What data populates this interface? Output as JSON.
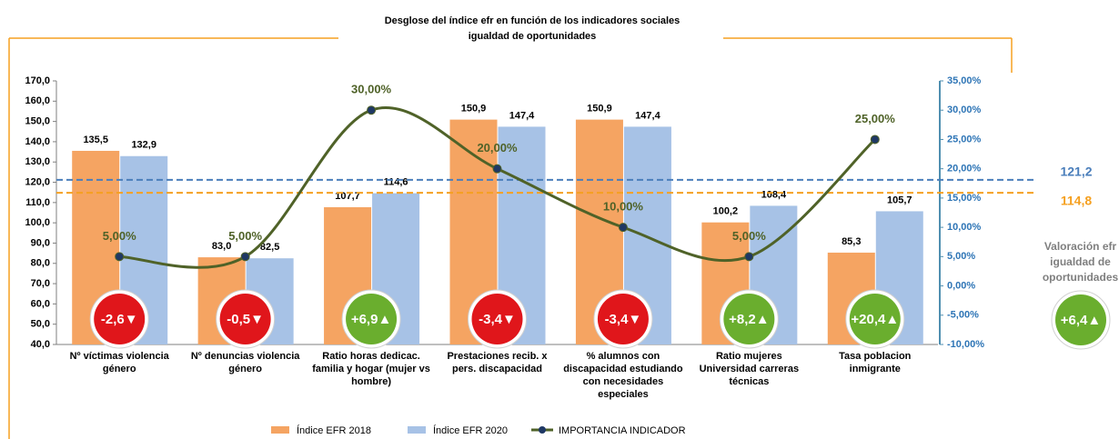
{
  "chart_data": {
    "type": "bar",
    "title": "Desglose del índice efr en función de los indicadores sociales",
    "subtitle": "igualdad de oportunidades",
    "categories": [
      "Nº víctimas violencia género",
      "Nº denuncias violencia género",
      "Ratio horas dedicac. familia y hogar (mujer vs hombre)",
      "Prestaciones recib. x pers. discapacidad",
      "% alumnos con discapacidad estudiando con necesidades especiales",
      "Ratio mujeres Universidad carreras técnicas",
      "Tasa poblacion inmigrante"
    ],
    "series": [
      {
        "name": "Índice EFR 2018",
        "color": "#f5a462",
        "values": [
          135.5,
          83.0,
          107.7,
          150.9,
          150.9,
          100.2,
          85.3
        ],
        "value_labels": [
          "135,5",
          "83,0",
          "107,7",
          "150,9",
          "150,9",
          "100,2",
          "85,3"
        ]
      },
      {
        "name": "Índice EFR 2020",
        "color": "#a7c2e6",
        "values": [
          132.9,
          82.5,
          114.6,
          147.4,
          147.4,
          108.4,
          105.7
        ],
        "value_labels": [
          "132,9",
          "82,5",
          "114,6",
          "147,4",
          "147,4",
          "108,4",
          "105,7"
        ]
      },
      {
        "name": "IMPORTANCIA INDICADOR",
        "type": "line",
        "axis": "y2",
        "color": "#4f6228",
        "marker_color": "#1f3864",
        "values": [
          5,
          5,
          30,
          20,
          10,
          5,
          25
        ],
        "value_labels": [
          "5,00%",
          "5,00%",
          "30,00%",
          "20,00%",
          "10,00%",
          "5,00%",
          "25,00%"
        ]
      }
    ],
    "ylim": [
      40,
      170
    ],
    "yticks": [
      {
        "value": 40,
        "label": "40,0"
      },
      {
        "value": 50,
        "label": "50,0"
      },
      {
        "value": 60,
        "label": "60,0"
      },
      {
        "value": 70,
        "label": "70,0"
      },
      {
        "value": 80,
        "label": "80,0"
      },
      {
        "value": 90,
        "label": "90,0"
      },
      {
        "value": 100,
        "label": "100,0"
      },
      {
        "value": 110,
        "label": "110,0"
      },
      {
        "value": 120,
        "label": "120,0"
      },
      {
        "value": 130,
        "label": "130,0"
      },
      {
        "value": 140,
        "label": "140,0"
      },
      {
        "value": 150,
        "label": "150,0"
      },
      {
        "value": 160,
        "label": "160,0"
      },
      {
        "value": 170,
        "label": "170,0"
      }
    ],
    "y2lim": [
      -10,
      35
    ],
    "y2ticks": [
      {
        "value": -10,
        "label": "-10,00%"
      },
      {
        "value": -5,
        "label": "-5,00%"
      },
      {
        "value": 0,
        "label": "0,00%"
      },
      {
        "value": 5,
        "label": "5,00%"
      },
      {
        "value": 10,
        "label": "10,00%"
      },
      {
        "value": 15,
        "label": "15,00%"
      },
      {
        "value": 20,
        "label": "20,00%"
      },
      {
        "value": 25,
        "label": "25,00%"
      },
      {
        "value": 30,
        "label": "30,00%"
      },
      {
        "value": 35,
        "label": "35,00%"
      }
    ],
    "reference_lines": [
      {
        "value": 121.2,
        "label": "121,2",
        "color": "#4a7ebb"
      },
      {
        "value": 114.8,
        "label": "114,8",
        "color": "#f5a020"
      }
    ],
    "badges": [
      "-2,6▼",
      "-0,5▼",
      "+6,9▲",
      "-3,4▼",
      "-3,4▼",
      "+8,2▲",
      "+20,4▲"
    ],
    "badge_colors": [
      "#e0161b",
      "#e0161b",
      "#6aae2e",
      "#e0161b",
      "#e0161b",
      "#6aae2e",
      "#6aae2e"
    ],
    "summary_label": "Valoración efr igualdad de oportunidades",
    "summary_badge": "+6,4▲",
    "summary_badge_color": "#6aae2e"
  }
}
